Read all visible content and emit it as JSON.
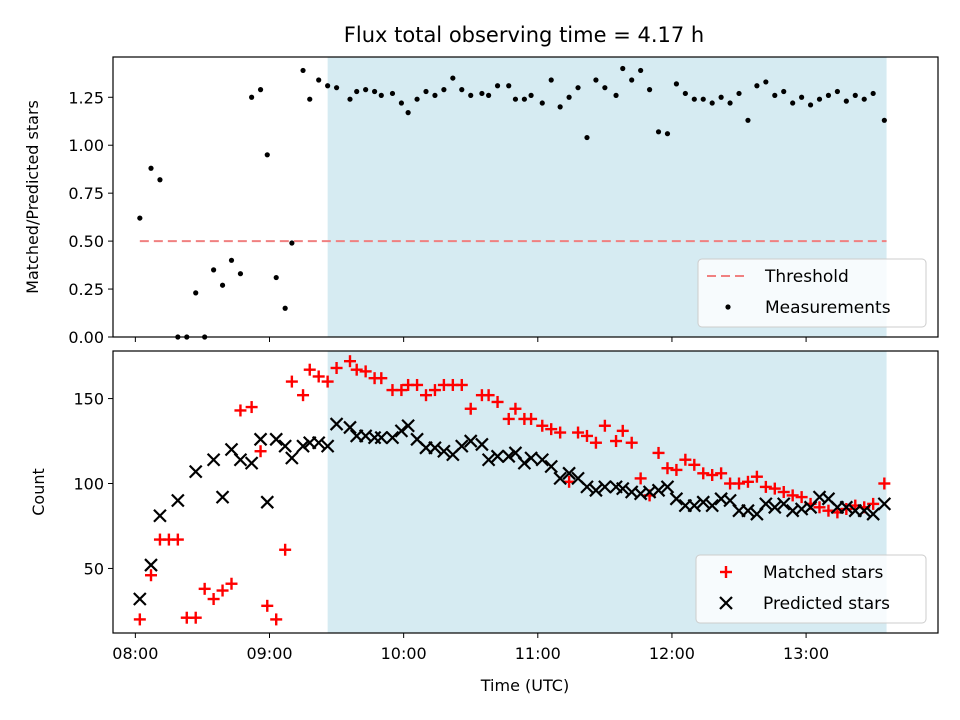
{
  "chart_data": [
    {
      "type": "scatter",
      "title": "Flux total observing time = 4.17 h",
      "xlabel": "",
      "ylabel": "Matched/Predicted stars",
      "xlim_minutes": [
        470,
        839
      ],
      "ylim": [
        0,
        1.46
      ],
      "yticks": [
        0.0,
        0.25,
        0.5,
        0.75,
        1.0,
        1.25
      ],
      "ytick_labels": [
        "0.00",
        "0.25",
        "0.50",
        "0.75",
        "1.00",
        "1.25"
      ],
      "shaded_region_minutes": [
        566,
        816
      ],
      "shade_color": "#add8e6",
      "threshold": {
        "name": "Threshold",
        "value": 0.5,
        "x_minutes": [
          482,
          816
        ],
        "color": "#f08080"
      },
      "series": [
        {
          "name": "Measurements",
          "marker": "dot",
          "color": "#000000",
          "x_minutes": [
            482,
            487,
            491,
            499,
            503,
            507,
            511,
            515,
            519,
            523,
            527,
            532,
            536,
            539,
            543,
            547,
            550,
            555,
            558,
            562,
            566,
            570,
            576,
            579,
            583,
            587,
            590,
            595,
            599,
            602,
            606,
            610,
            614,
            618,
            622,
            626,
            630,
            635,
            638,
            642,
            647,
            650,
            654,
            657,
            662,
            666,
            670,
            674,
            678,
            682,
            686,
            690,
            695,
            698,
            702,
            706,
            710,
            714,
            718,
            722,
            726,
            730,
            734,
            738,
            742,
            746,
            750,
            754,
            758,
            762,
            766,
            770,
            774,
            778,
            782,
            786,
            790,
            794,
            798,
            802,
            806,
            810,
            815
          ],
          "y": [
            0.62,
            0.88,
            0.82,
            0.0,
            0.0,
            0.23,
            0.0,
            0.35,
            0.27,
            0.4,
            0.33,
            1.25,
            1.29,
            0.95,
            0.31,
            0.15,
            0.49,
            1.39,
            1.24,
            1.34,
            1.31,
            1.3,
            1.24,
            1.28,
            1.29,
            1.28,
            1.26,
            1.27,
            1.22,
            1.17,
            1.24,
            1.28,
            1.26,
            1.29,
            1.35,
            1.29,
            1.26,
            1.27,
            1.26,
            1.31,
            1.31,
            1.24,
            1.24,
            1.26,
            1.22,
            1.34,
            1.2,
            1.25,
            1.3,
            1.04,
            1.34,
            1.3,
            1.26,
            1.4,
            1.34,
            1.39,
            1.29,
            1.07,
            1.06,
            1.32,
            1.27,
            1.24,
            1.24,
            1.22,
            1.25,
            1.22,
            1.27,
            1.13,
            1.31,
            1.33,
            1.26,
            1.28,
            1.22,
            1.25,
            1.21,
            1.24,
            1.26,
            1.28,
            1.23,
            1.26,
            1.24,
            1.27,
            1.13
          ]
        }
      ],
      "legend": {
        "position": "lower-right",
        "entries": [
          "Threshold",
          "Measurements"
        ]
      }
    },
    {
      "type": "scatter",
      "title": "",
      "xlabel": "Time (UTC)",
      "ylabel": "Count",
      "xlim_minutes": [
        470,
        839
      ],
      "ylim": [
        12,
        178
      ],
      "yticks": [
        50,
        100,
        150
      ],
      "ytick_labels": [
        "50",
        "100",
        "150"
      ],
      "xticks_minutes": [
        480,
        540,
        600,
        660,
        720,
        780
      ],
      "xtick_labels": [
        "08:00",
        "09:00",
        "10:00",
        "11:00",
        "12:00",
        "13:00"
      ],
      "shaded_region_minutes": [
        566,
        816
      ],
      "shade_color": "#add8e6",
      "series": [
        {
          "name": "Matched stars",
          "marker": "plus",
          "color": "#ff0000",
          "x_minutes": [
            482,
            487,
            491,
            495,
            499,
            503,
            507,
            511,
            515,
            519,
            523,
            527,
            532,
            536,
            539,
            543,
            547,
            550,
            555,
            558,
            562,
            566,
            570,
            576,
            579,
            583,
            587,
            590,
            595,
            599,
            602,
            606,
            610,
            614,
            618,
            622,
            626,
            630,
            635,
            638,
            642,
            647,
            650,
            654,
            657,
            662,
            666,
            670,
            674,
            678,
            682,
            686,
            690,
            695,
            698,
            702,
            706,
            710,
            714,
            718,
            722,
            726,
            730,
            734,
            738,
            742,
            746,
            750,
            754,
            758,
            762,
            766,
            770,
            774,
            778,
            782,
            786,
            790,
            794,
            798,
            802,
            806,
            810,
            815
          ],
          "y": [
            20,
            46,
            67,
            67,
            67,
            21,
            21,
            38,
            32,
            37,
            41,
            143,
            145,
            119,
            28,
            20,
            61,
            160,
            152,
            167,
            163,
            160,
            168,
            172,
            167,
            166,
            162,
            162,
            155,
            155,
            158,
            158,
            152,
            155,
            158,
            158,
            158,
            144,
            152,
            152,
            148,
            138,
            144,
            138,
            138,
            134,
            132,
            130,
            101,
            130,
            128,
            124,
            134,
            125,
            131,
            124,
            103,
            93,
            118,
            109,
            108,
            114,
            111,
            106,
            105,
            106,
            100,
            100,
            101,
            104,
            98,
            97,
            95,
            93,
            92,
            88,
            86,
            84,
            83,
            85,
            87,
            86,
            88,
            100
          ]
        },
        {
          "name": "Predicted stars",
          "marker": "x",
          "color": "#000000",
          "x_minutes": [
            482,
            487,
            491,
            499,
            507,
            515,
            519,
            523,
            527,
            532,
            536,
            539,
            543,
            547,
            550,
            555,
            558,
            562,
            566,
            570,
            576,
            579,
            583,
            587,
            590,
            595,
            599,
            602,
            606,
            610,
            614,
            618,
            622,
            626,
            630,
            635,
            638,
            642,
            647,
            650,
            654,
            657,
            662,
            666,
            670,
            674,
            678,
            682,
            686,
            690,
            695,
            698,
            702,
            706,
            710,
            714,
            718,
            722,
            726,
            730,
            734,
            738,
            742,
            746,
            750,
            754,
            758,
            762,
            766,
            770,
            774,
            778,
            782,
            786,
            790,
            794,
            798,
            802,
            806,
            810,
            815
          ],
          "y": [
            32,
            52,
            81,
            90,
            107,
            114,
            92,
            120,
            114,
            112,
            126,
            89,
            126,
            122,
            115,
            122,
            124,
            124,
            122,
            135,
            133,
            128,
            128,
            127,
            127,
            127,
            131,
            134,
            126,
            121,
            121,
            119,
            117,
            122,
            125,
            123,
            114,
            116,
            116,
            118,
            112,
            115,
            114,
            110,
            103,
            106,
            103,
            98,
            96,
            98,
            98,
            97,
            95,
            94,
            95,
            96,
            98,
            91,
            87,
            87,
            89,
            87,
            91,
            90,
            84,
            84,
            82,
            88,
            86,
            88,
            84,
            85,
            86,
            92,
            91,
            86,
            86,
            84,
            84,
            82,
            88
          ]
        }
      ],
      "legend": {
        "position": "lower-right",
        "entries": [
          "Matched stars",
          "Predicted stars"
        ]
      }
    }
  ]
}
